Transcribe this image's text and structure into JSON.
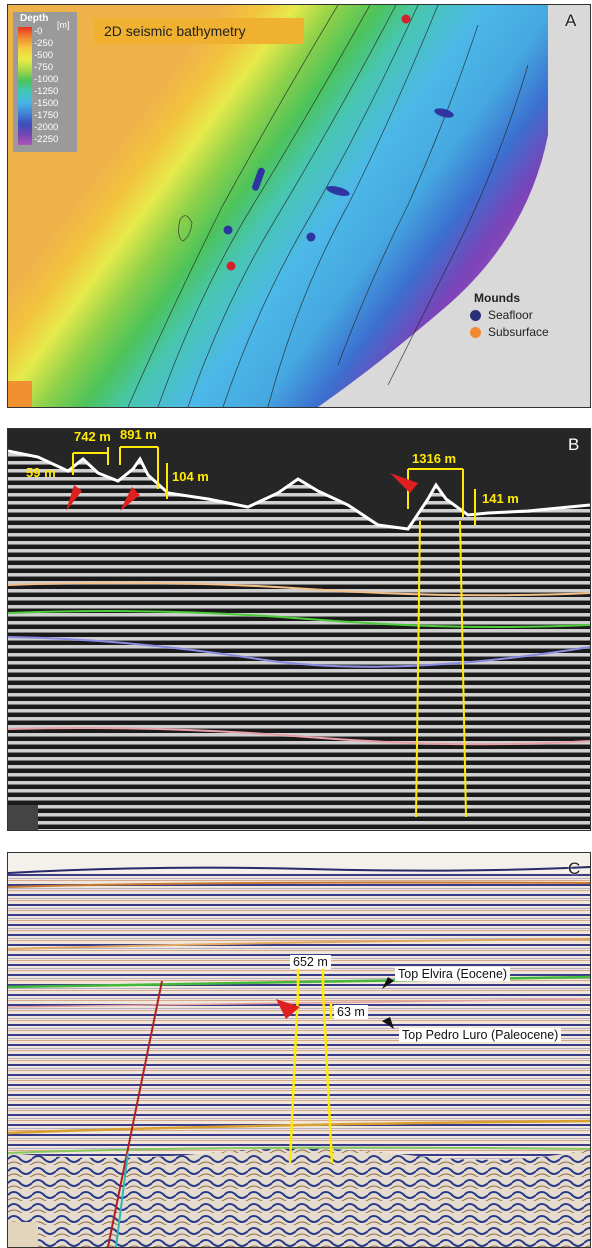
{
  "panel_a": {
    "letter": "A",
    "title": "2D seismic bathymetry",
    "legend": {
      "title": "Depth",
      "unit": "[m]",
      "ticks": [
        "-0",
        "-250",
        "-500",
        "-750",
        "-1000",
        "-1250",
        "-1500",
        "-1750",
        "-2000",
        "-2250"
      ]
    },
    "mounds_legend": {
      "title": "Mounds",
      "items": [
        {
          "label": "Seafloor",
          "color": "#2a2f7a"
        },
        {
          "label": "Subsurface",
          "color": "#f08a30"
        }
      ]
    },
    "colors": {
      "shelf": "#efb14a",
      "slope_top": "#e6ea4b",
      "mid": "#4cc35a",
      "deep_blue": "#42b0e4",
      "abyss": "#7a44b8",
      "seafloor_mound": "#2e35a0",
      "red_mound": "#d8202a"
    }
  },
  "panel_b": {
    "letter": "B",
    "measurements": [
      "742 m",
      "891 m",
      "59 m",
      "104 m",
      "1316 m",
      "141 m"
    ],
    "horizon_colors": [
      "#f4c08a",
      "#4ccc3a",
      "#8a8ce0",
      "#e8a0a8"
    ]
  },
  "panel_c": {
    "letter": "C",
    "width_label": "652 m",
    "height_label": "63 m",
    "horizons": [
      "Top Elvira (Eocene)",
      "Top Pedro Luro (Paleocene)"
    ]
  }
}
